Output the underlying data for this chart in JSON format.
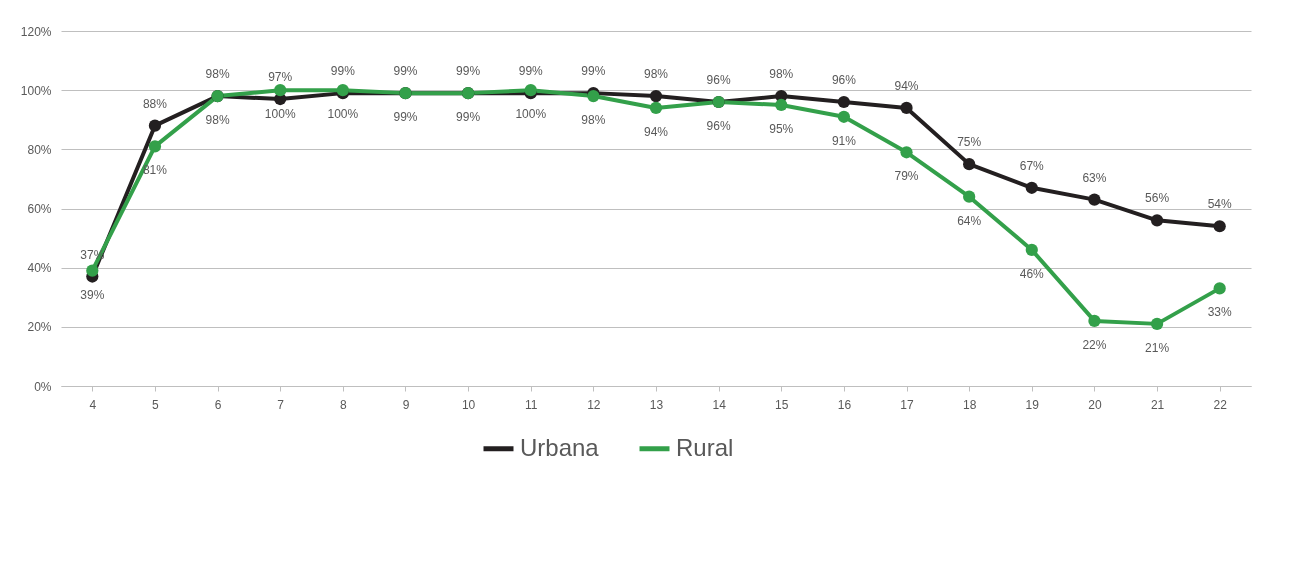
{
  "chart_data": {
    "type": "line",
    "categories": [
      "4",
      "5",
      "6",
      "7",
      "8",
      "9",
      "10",
      "11",
      "12",
      "13",
      "14",
      "15",
      "16",
      "17",
      "18",
      "19",
      "20",
      "21",
      "22"
    ],
    "series": [
      {
        "name": "Urbana",
        "color": "#231f20",
        "values": [
          37,
          88,
          98,
          97,
          99,
          99,
          99,
          99,
          99,
          98,
          96,
          98,
          96,
          94,
          75,
          67,
          63,
          56,
          54
        ],
        "value_labels": [
          "37%",
          "88%",
          "98%",
          "97%",
          "99%",
          "99%",
          "99%",
          "99%",
          "99%",
          "98%",
          "96%",
          "98%",
          "96%",
          "94%",
          "75%",
          "67%",
          "63%",
          "56%",
          "54%"
        ]
      },
      {
        "name": "Rural",
        "color": "#33a04a",
        "values": [
          39,
          81,
          98,
          100,
          100,
          99,
          99,
          100,
          98,
          94,
          96,
          95,
          91,
          79,
          64,
          46,
          22,
          21,
          33
        ],
        "value_labels": [
          "39%",
          "81%",
          "98%",
          "100%",
          "100%",
          "99%",
          "99%",
          "100%",
          "98%",
          "94%",
          "96%",
          "95%",
          "91%",
          "79%",
          "64%",
          "46%",
          "22%",
          "21%",
          "33%"
        ]
      }
    ],
    "ylim": [
      0,
      120
    ],
    "yticks": [
      {
        "value": 0,
        "label": "0%"
      },
      {
        "value": 20,
        "label": "20%"
      },
      {
        "value": 40,
        "label": "40%"
      },
      {
        "value": 60,
        "label": "60%"
      },
      {
        "value": 80,
        "label": "80%"
      },
      {
        "value": 100,
        "label": "100%"
      },
      {
        "value": 120,
        "label": "120%"
      }
    ],
    "grid": "y",
    "legend": "bottom",
    "marker": "circle",
    "line_style": "solid"
  }
}
